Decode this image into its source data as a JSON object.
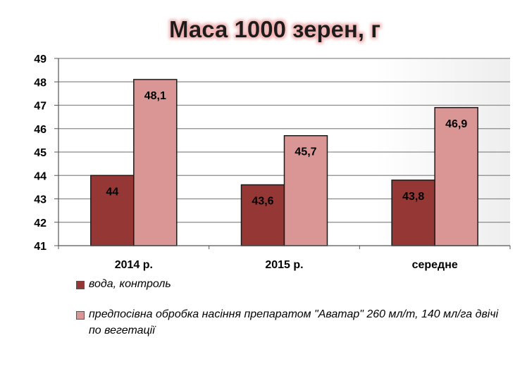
{
  "chart_data": {
    "type": "bar",
    "title": "Маса 1000 зерен, г",
    "categories": [
      "2014 р.",
      "2015 р.",
      "середне"
    ],
    "series": [
      {
        "name": "вода, контроль",
        "values": [
          44,
          43.6,
          43.8
        ],
        "labels": [
          "44",
          "43,6",
          "43,8"
        ],
        "color": "#953735"
      },
      {
        "name": "предпосівна обробка насіння препаратом \"Аватар\" 260 мл/т, 140 мл/га двічі по вегетації",
        "values": [
          48.1,
          45.7,
          46.9
        ],
        "labels": [
          "48,1",
          "45,7",
          "46,9"
        ],
        "color": "#d99694"
      }
    ],
    "ylim": [
      41,
      49
    ],
    "yticks": [
      "41",
      "42",
      "43",
      "44",
      "45",
      "46",
      "47",
      "48",
      "49"
    ],
    "grid": true,
    "legend_position": "bottom",
    "title_glow_color": "#f2b5b5"
  }
}
